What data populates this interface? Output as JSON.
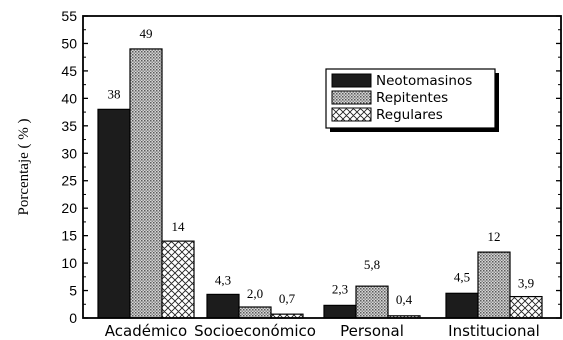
{
  "chart_data": {
    "type": "bar",
    "categories": [
      "Académico",
      "Socioeconómico",
      "Personal",
      "Institucional"
    ],
    "series": [
      {
        "name": "Neotomasinos",
        "values": [
          38,
          4.3,
          2.3,
          4.5
        ],
        "labels": [
          "38",
          "4,3",
          "2,3",
          "4,5"
        ],
        "pattern": "solid",
        "color": "#1a1a1a"
      },
      {
        "name": "Repitentes",
        "values": [
          49,
          2.0,
          5.8,
          12
        ],
        "labels": [
          "49",
          "2,0",
          "5,8",
          "12"
        ],
        "pattern": "dots",
        "color": "#b8b8b8"
      },
      {
        "name": "Regulares",
        "values": [
          14,
          0.7,
          0.4,
          3.9
        ],
        "labels": [
          "14",
          "0,7",
          "0,4",
          "3,9"
        ],
        "pattern": "crosshatch",
        "color": "#ffffff"
      }
    ],
    "ylabel": "Porcentaje ( % )",
    "xlabel": "",
    "ylim": [
      0,
      55
    ],
    "yticks": [
      0,
      5,
      10,
      15,
      20,
      25,
      30,
      35,
      40,
      45,
      50,
      55
    ],
    "grid": false,
    "legend_position": "top-right"
  }
}
